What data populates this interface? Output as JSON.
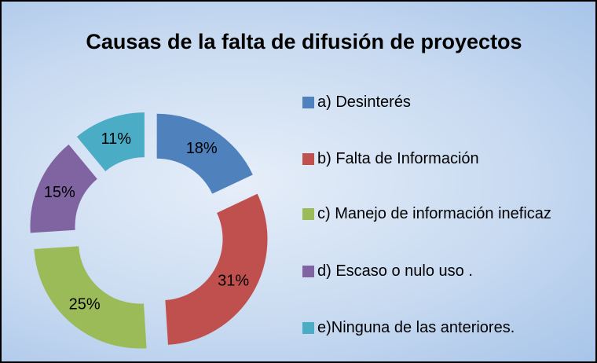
{
  "chart_data": {
    "type": "donut",
    "title": "Causas de la falta de difusión de proyectos",
    "categories": [
      "a) Desinterés",
      "b) Falta de Información",
      "c) Manejo de información ineficaz",
      "d) Escaso o nulo uso .",
      "e)Ninguna de las anteriores."
    ],
    "values": [
      18,
      31,
      25,
      15,
      11
    ],
    "value_labels": [
      "18%",
      "31%",
      "25%",
      "15%",
      "11%"
    ],
    "colors": [
      "#4f81bd",
      "#c0504d",
      "#9bbb59",
      "#8064a2",
      "#4bacc6"
    ],
    "legend": "right"
  }
}
